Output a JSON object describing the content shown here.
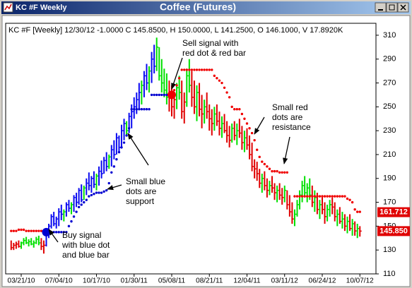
{
  "window": {
    "caption": "KC #F Weekly",
    "title": "Coffee (Futures)"
  },
  "chart_data": {
    "type": "ohlc",
    "header": "KC #F [Weekly] 12/30/12 -1.0000 C 145.8500, H 150.0000, L 141.2500, O 146.1000, V 17.8920K",
    "ylim": [
      110,
      320
    ],
    "yticks": [
      110,
      130,
      150,
      170,
      190,
      210,
      230,
      250,
      270,
      290,
      310
    ],
    "colors": {
      "b": "#0a0af0",
      "g": "#00e000",
      "r": "#e00000",
      "support": "#0000d0",
      "resistance": "#f00000"
    },
    "categories": [
      null,
      null,
      null,
      null,
      "03/21/10",
      null,
      null,
      null,
      null,
      null,
      null,
      null,
      null,
      null,
      null,
      null,
      null,
      null,
      null,
      "07/04/10",
      null,
      null,
      null,
      null,
      null,
      null,
      null,
      null,
      null,
      null,
      null,
      null,
      null,
      null,
      "10/17/10",
      null,
      null,
      null,
      null,
      null,
      null,
      null,
      null,
      null,
      null,
      null,
      null,
      null,
      null,
      "01/30/11",
      null,
      null,
      null,
      null,
      null,
      null,
      null,
      null,
      null,
      null,
      null,
      null,
      null,
      null,
      "05/08/11",
      null,
      null,
      null,
      null,
      null,
      null,
      null,
      null,
      null,
      null,
      null,
      null,
      null,
      null,
      "08/21/11",
      null,
      null,
      null,
      null,
      null,
      null,
      null,
      null,
      null,
      null,
      null,
      null,
      null,
      null,
      "12/04/11",
      null,
      null,
      null,
      null,
      null,
      null,
      null,
      null,
      null,
      null,
      null,
      null,
      null,
      null,
      "03/11/12",
      null,
      null,
      null,
      null,
      null,
      null,
      null,
      null,
      null,
      null,
      null,
      null,
      null,
      null,
      "06/24/12",
      null,
      null,
      null,
      null,
      null,
      null,
      null,
      null,
      null,
      null,
      null,
      null,
      null,
      null,
      "10/07/12"
    ],
    "bars": [
      [
        138,
        130,
        132,
        "r"
      ],
      [
        136,
        130,
        134,
        "r"
      ],
      [
        137,
        131,
        135,
        "r"
      ],
      [
        138,
        132,
        133,
        "r"
      ],
      [
        137,
        131,
        136,
        "g"
      ],
      [
        140,
        134,
        138,
        "g"
      ],
      [
        141,
        135,
        136,
        "g"
      ],
      [
        139,
        133,
        137,
        "g"
      ],
      [
        140,
        134,
        135,
        "g"
      ],
      [
        138,
        132,
        136,
        "g"
      ],
      [
        141,
        135,
        139,
        "g"
      ],
      [
        142,
        134,
        136,
        "g"
      ],
      [
        140,
        130,
        133,
        "r"
      ],
      [
        138,
        127,
        134,
        "r"
      ],
      [
        146,
        133,
        144,
        "b"
      ],
      [
        152,
        140,
        150,
        "b"
      ],
      [
        160,
        148,
        158,
        "b"
      ],
      [
        162,
        150,
        152,
        "b"
      ],
      [
        158,
        148,
        156,
        "b"
      ],
      [
        165,
        150,
        162,
        "b"
      ],
      [
        168,
        155,
        160,
        "b"
      ],
      [
        164,
        154,
        162,
        "g"
      ],
      [
        170,
        158,
        168,
        "b"
      ],
      [
        172,
        162,
        165,
        "b"
      ],
      [
        170,
        160,
        168,
        "g"
      ],
      [
        176,
        162,
        174,
        "b"
      ],
      [
        178,
        166,
        170,
        "b"
      ],
      [
        182,
        168,
        180,
        "b"
      ],
      [
        185,
        170,
        172,
        "b"
      ],
      [
        184,
        172,
        182,
        "g"
      ],
      [
        190,
        176,
        186,
        "b"
      ],
      [
        195,
        180,
        184,
        "b"
      ],
      [
        192,
        178,
        190,
        "b"
      ],
      [
        196,
        182,
        185,
        "b"
      ],
      [
        194,
        180,
        192,
        "g"
      ],
      [
        200,
        184,
        196,
        "b"
      ],
      [
        205,
        190,
        194,
        "b"
      ],
      [
        208,
        194,
        205,
        "b"
      ],
      [
        212,
        196,
        200,
        "b"
      ],
      [
        210,
        198,
        208,
        "g"
      ],
      [
        218,
        200,
        214,
        "b"
      ],
      [
        222,
        206,
        210,
        "b"
      ],
      [
        228,
        210,
        224,
        "b"
      ],
      [
        226,
        212,
        216,
        "b"
      ],
      [
        235,
        215,
        230,
        "b"
      ],
      [
        240,
        222,
        236,
        "b"
      ],
      [
        238,
        225,
        230,
        "g"
      ],
      [
        245,
        228,
        242,
        "b"
      ],
      [
        252,
        232,
        246,
        "b"
      ],
      [
        258,
        240,
        250,
        "b"
      ],
      [
        262,
        244,
        256,
        "b"
      ],
      [
        270,
        248,
        262,
        "b"
      ],
      [
        272,
        252,
        268,
        "g"
      ],
      [
        280,
        258,
        276,
        "b"
      ],
      [
        286,
        264,
        270,
        "b"
      ],
      [
        284,
        262,
        280,
        "g"
      ],
      [
        296,
        270,
        290,
        "b"
      ],
      [
        302,
        278,
        284,
        "b"
      ],
      [
        308,
        280,
        300,
        "g"
      ],
      [
        300,
        272,
        276,
        "g"
      ],
      [
        290,
        262,
        270,
        "g"
      ],
      [
        282,
        258,
        264,
        "g"
      ],
      [
        278,
        252,
        258,
        "g"
      ],
      [
        272,
        246,
        262,
        "r"
      ],
      [
        268,
        242,
        250,
        "r"
      ],
      [
        262,
        240,
        256,
        "r"
      ],
      [
        270,
        248,
        266,
        "g"
      ],
      [
        276,
        256,
        262,
        "g"
      ],
      [
        272,
        240,
        246,
        "r"
      ],
      [
        262,
        236,
        254,
        "r"
      ],
      [
        282,
        250,
        276,
        "g"
      ],
      [
        290,
        262,
        268,
        "g"
      ],
      [
        280,
        250,
        258,
        "r"
      ],
      [
        272,
        244,
        250,
        "r"
      ],
      [
        268,
        238,
        262,
        "g"
      ],
      [
        270,
        242,
        248,
        "r"
      ],
      [
        260,
        232,
        244,
        "r"
      ],
      [
        256,
        236,
        250,
        "g"
      ],
      [
        262,
        240,
        246,
        "r"
      ],
      [
        252,
        230,
        240,
        "r"
      ],
      [
        248,
        226,
        236,
        "r"
      ],
      [
        250,
        230,
        244,
        "g"
      ],
      [
        252,
        234,
        238,
        "r"
      ],
      [
        246,
        226,
        232,
        "r"
      ],
      [
        242,
        224,
        236,
        "g"
      ],
      [
        244,
        228,
        230,
        "r"
      ],
      [
        238,
        220,
        226,
        "r"
      ],
      [
        234,
        216,
        222,
        "r"
      ],
      [
        236,
        220,
        232,
        "g"
      ],
      [
        238,
        222,
        226,
        "r"
      ],
      [
        236,
        218,
        230,
        "g"
      ],
      [
        240,
        224,
        228,
        "r"
      ],
      [
        234,
        214,
        220,
        "r"
      ],
      [
        230,
        212,
        224,
        "g"
      ],
      [
        232,
        214,
        218,
        "r"
      ],
      [
        226,
        206,
        210,
        "r"
      ],
      [
        220,
        196,
        200,
        "r"
      ],
      [
        206,
        190,
        198,
        "r"
      ],
      [
        204,
        188,
        194,
        "r"
      ],
      [
        198,
        182,
        186,
        "r"
      ],
      [
        194,
        178,
        190,
        "g"
      ],
      [
        196,
        180,
        184,
        "r"
      ],
      [
        190,
        174,
        180,
        "r"
      ],
      [
        188,
        176,
        184,
        "g"
      ],
      [
        192,
        178,
        182,
        "r"
      ],
      [
        186,
        172,
        178,
        "r"
      ],
      [
        184,
        170,
        180,
        "g"
      ],
      [
        186,
        172,
        176,
        "r"
      ],
      [
        182,
        168,
        174,
        "r"
      ],
      [
        184,
        170,
        180,
        "g"
      ],
      [
        180,
        164,
        168,
        "r"
      ],
      [
        176,
        158,
        162,
        "r"
      ],
      [
        170,
        152,
        156,
        "r"
      ],
      [
        164,
        150,
        160,
        "g"
      ],
      [
        172,
        158,
        168,
        "g"
      ],
      [
        180,
        164,
        176,
        "g"
      ],
      [
        188,
        170,
        184,
        "g"
      ],
      [
        192,
        174,
        178,
        "g"
      ],
      [
        186,
        170,
        182,
        "g"
      ],
      [
        190,
        172,
        176,
        "g"
      ],
      [
        184,
        166,
        170,
        "r"
      ],
      [
        180,
        162,
        174,
        "g"
      ],
      [
        178,
        160,
        164,
        "r"
      ],
      [
        172,
        156,
        168,
        "g"
      ],
      [
        176,
        160,
        164,
        "r"
      ],
      [
        170,
        152,
        158,
        "r"
      ],
      [
        168,
        154,
        164,
        "g"
      ],
      [
        172,
        158,
        168,
        "g"
      ],
      [
        174,
        160,
        166,
        "r"
      ],
      [
        170,
        154,
        158,
        "r"
      ],
      [
        164,
        150,
        160,
        "g"
      ],
      [
        166,
        152,
        154,
        "r"
      ],
      [
        162,
        148,
        156,
        "g"
      ],
      [
        160,
        146,
        150,
        "r"
      ],
      [
        158,
        144,
        154,
        "g"
      ],
      [
        160,
        146,
        148,
        "r"
      ],
      [
        156,
        142,
        152,
        "g"
      ],
      [
        154,
        142,
        146,
        "r"
      ],
      [
        152,
        140,
        148,
        "g"
      ],
      [
        150,
        141.25,
        145.85,
        "r"
      ]
    ],
    "support": [
      null,
      null,
      null,
      null,
      null,
      null,
      null,
      null,
      null,
      null,
      null,
      null,
      null,
      null,
      145,
      145,
      145,
      145,
      145,
      145,
      145,
      145,
      145,
      150,
      154,
      158,
      162,
      166,
      168,
      170,
      172,
      175,
      176,
      177,
      178,
      178,
      178,
      179,
      180,
      186,
      195,
      200,
      206,
      212,
      216,
      220,
      226,
      232,
      248,
      248,
      248,
      248,
      248,
      248,
      248,
      248,
      260,
      260,
      260,
      260,
      260,
      260,
      260,
      260,
      null,
      null,
      null,
      null,
      null,
      null,
      null,
      null,
      null,
      null,
      null,
      null,
      null,
      null,
      null,
      null,
      null,
      null,
      null,
      null,
      null,
      null,
      null,
      null,
      null,
      null,
      null,
      null,
      null,
      null,
      null,
      null,
      null,
      null,
      null,
      null,
      null,
      null,
      null,
      null,
      null,
      null,
      null,
      null,
      null,
      null,
      null,
      null,
      null,
      null,
      null,
      null,
      null,
      null,
      null,
      null,
      null,
      null,
      null,
      null,
      null,
      null,
      null,
      null,
      null,
      null,
      null,
      null,
      null,
      null,
      null,
      null,
      null,
      null,
      null,
      null
    ],
    "resistance": [
      146,
      146,
      146,
      147,
      147,
      147,
      146,
      146,
      146,
      146,
      146,
      146,
      146,
      146,
      null,
      null,
      null,
      null,
      null,
      null,
      null,
      null,
      null,
      null,
      null,
      null,
      null,
      null,
      null,
      null,
      null,
      null,
      null,
      null,
      null,
      null,
      null,
      null,
      null,
      null,
      null,
      null,
      null,
      null,
      null,
      null,
      null,
      null,
      null,
      null,
      null,
      null,
      null,
      null,
      null,
      null,
      null,
      null,
      null,
      null,
      null,
      null,
      null,
      null,
      262,
      264,
      268,
      274,
      281,
      281,
      281,
      281,
      281,
      281,
      281,
      281,
      281,
      281,
      281,
      281,
      281,
      276,
      274,
      272,
      270,
      266,
      262,
      258,
      250,
      248,
      248,
      248,
      244,
      240,
      236,
      232,
      228,
      222,
      214,
      208,
      204,
      202,
      200,
      198,
      196,
      196,
      196,
      195,
      195,
      195,
      195,
      null,
      null,
      175,
      175,
      175,
      175,
      175,
      175,
      175,
      175,
      175,
      175,
      175,
      175,
      175,
      175,
      175,
      175,
      175,
      175,
      175,
      175,
      175,
      173,
      172,
      170,
      164,
      162,
      162
    ],
    "signals": [
      {
        "index": 14,
        "value": 145,
        "kind": "support"
      },
      {
        "index": 64,
        "value": 260,
        "kind": "resistance"
      }
    ],
    "price_tags": [
      {
        "value": 161.712,
        "label": "161.712"
      },
      {
        "value": 145.85,
        "label": "145.850"
      }
    ],
    "annotations": [
      {
        "lines": [
          "Sell signal with",
          "red dot & red bar"
        ]
      },
      {
        "lines": [
          "Small red",
          "dots are",
          "resistance"
        ]
      },
      {
        "lines": [
          "Small blue",
          "dots are",
          "support"
        ]
      },
      {
        "lines": [
          "Buy signal",
          "with blue dot",
          "and blue bar"
        ]
      }
    ]
  }
}
